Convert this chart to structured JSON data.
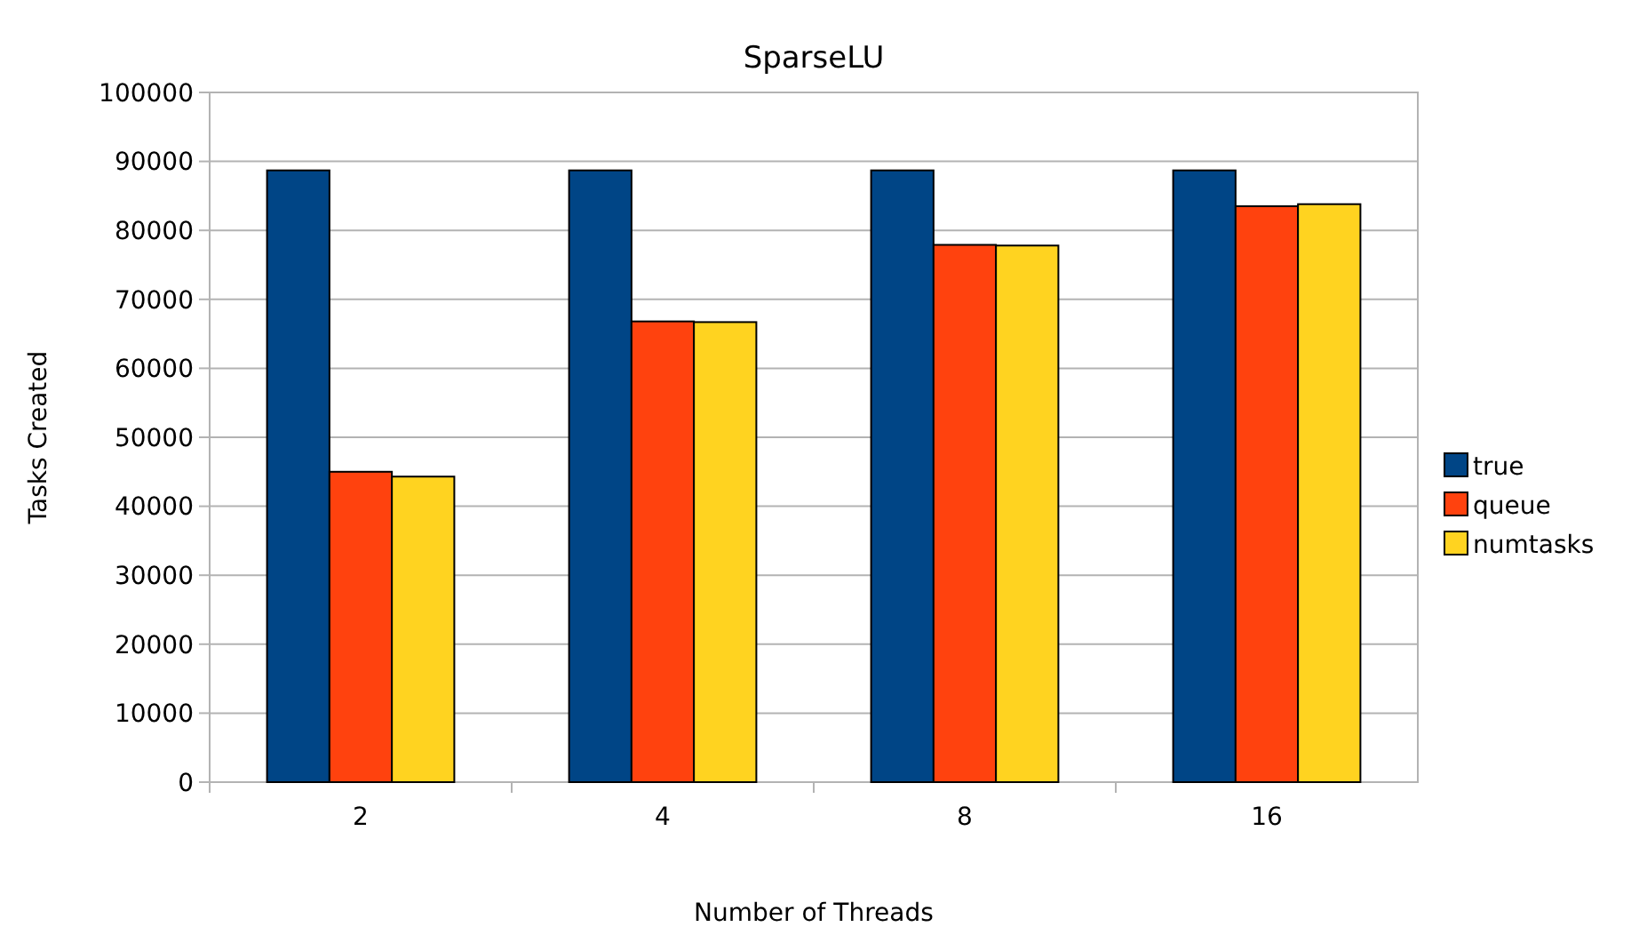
{
  "chart_data": {
    "type": "bar",
    "title": "SparseLU",
    "xlabel": "Number of Threads",
    "ylabel": "Tasks Created",
    "categories": [
      "2",
      "4",
      "8",
      "16"
    ],
    "series": [
      {
        "name": "true",
        "color": "#004586",
        "values": [
          88700,
          88700,
          88700,
          88700
        ]
      },
      {
        "name": "queue",
        "color": "#ff420e",
        "values": [
          45000,
          66800,
          77900,
          83500
        ]
      },
      {
        "name": "numtasks",
        "color": "#ffd320",
        "values": [
          44300,
          66700,
          77800,
          83800
        ]
      }
    ],
    "ylim": [
      0,
      100000
    ],
    "yticks": [
      0,
      10000,
      20000,
      30000,
      40000,
      50000,
      60000,
      70000,
      80000,
      90000,
      100000
    ],
    "grid": "y",
    "legend": "right"
  }
}
